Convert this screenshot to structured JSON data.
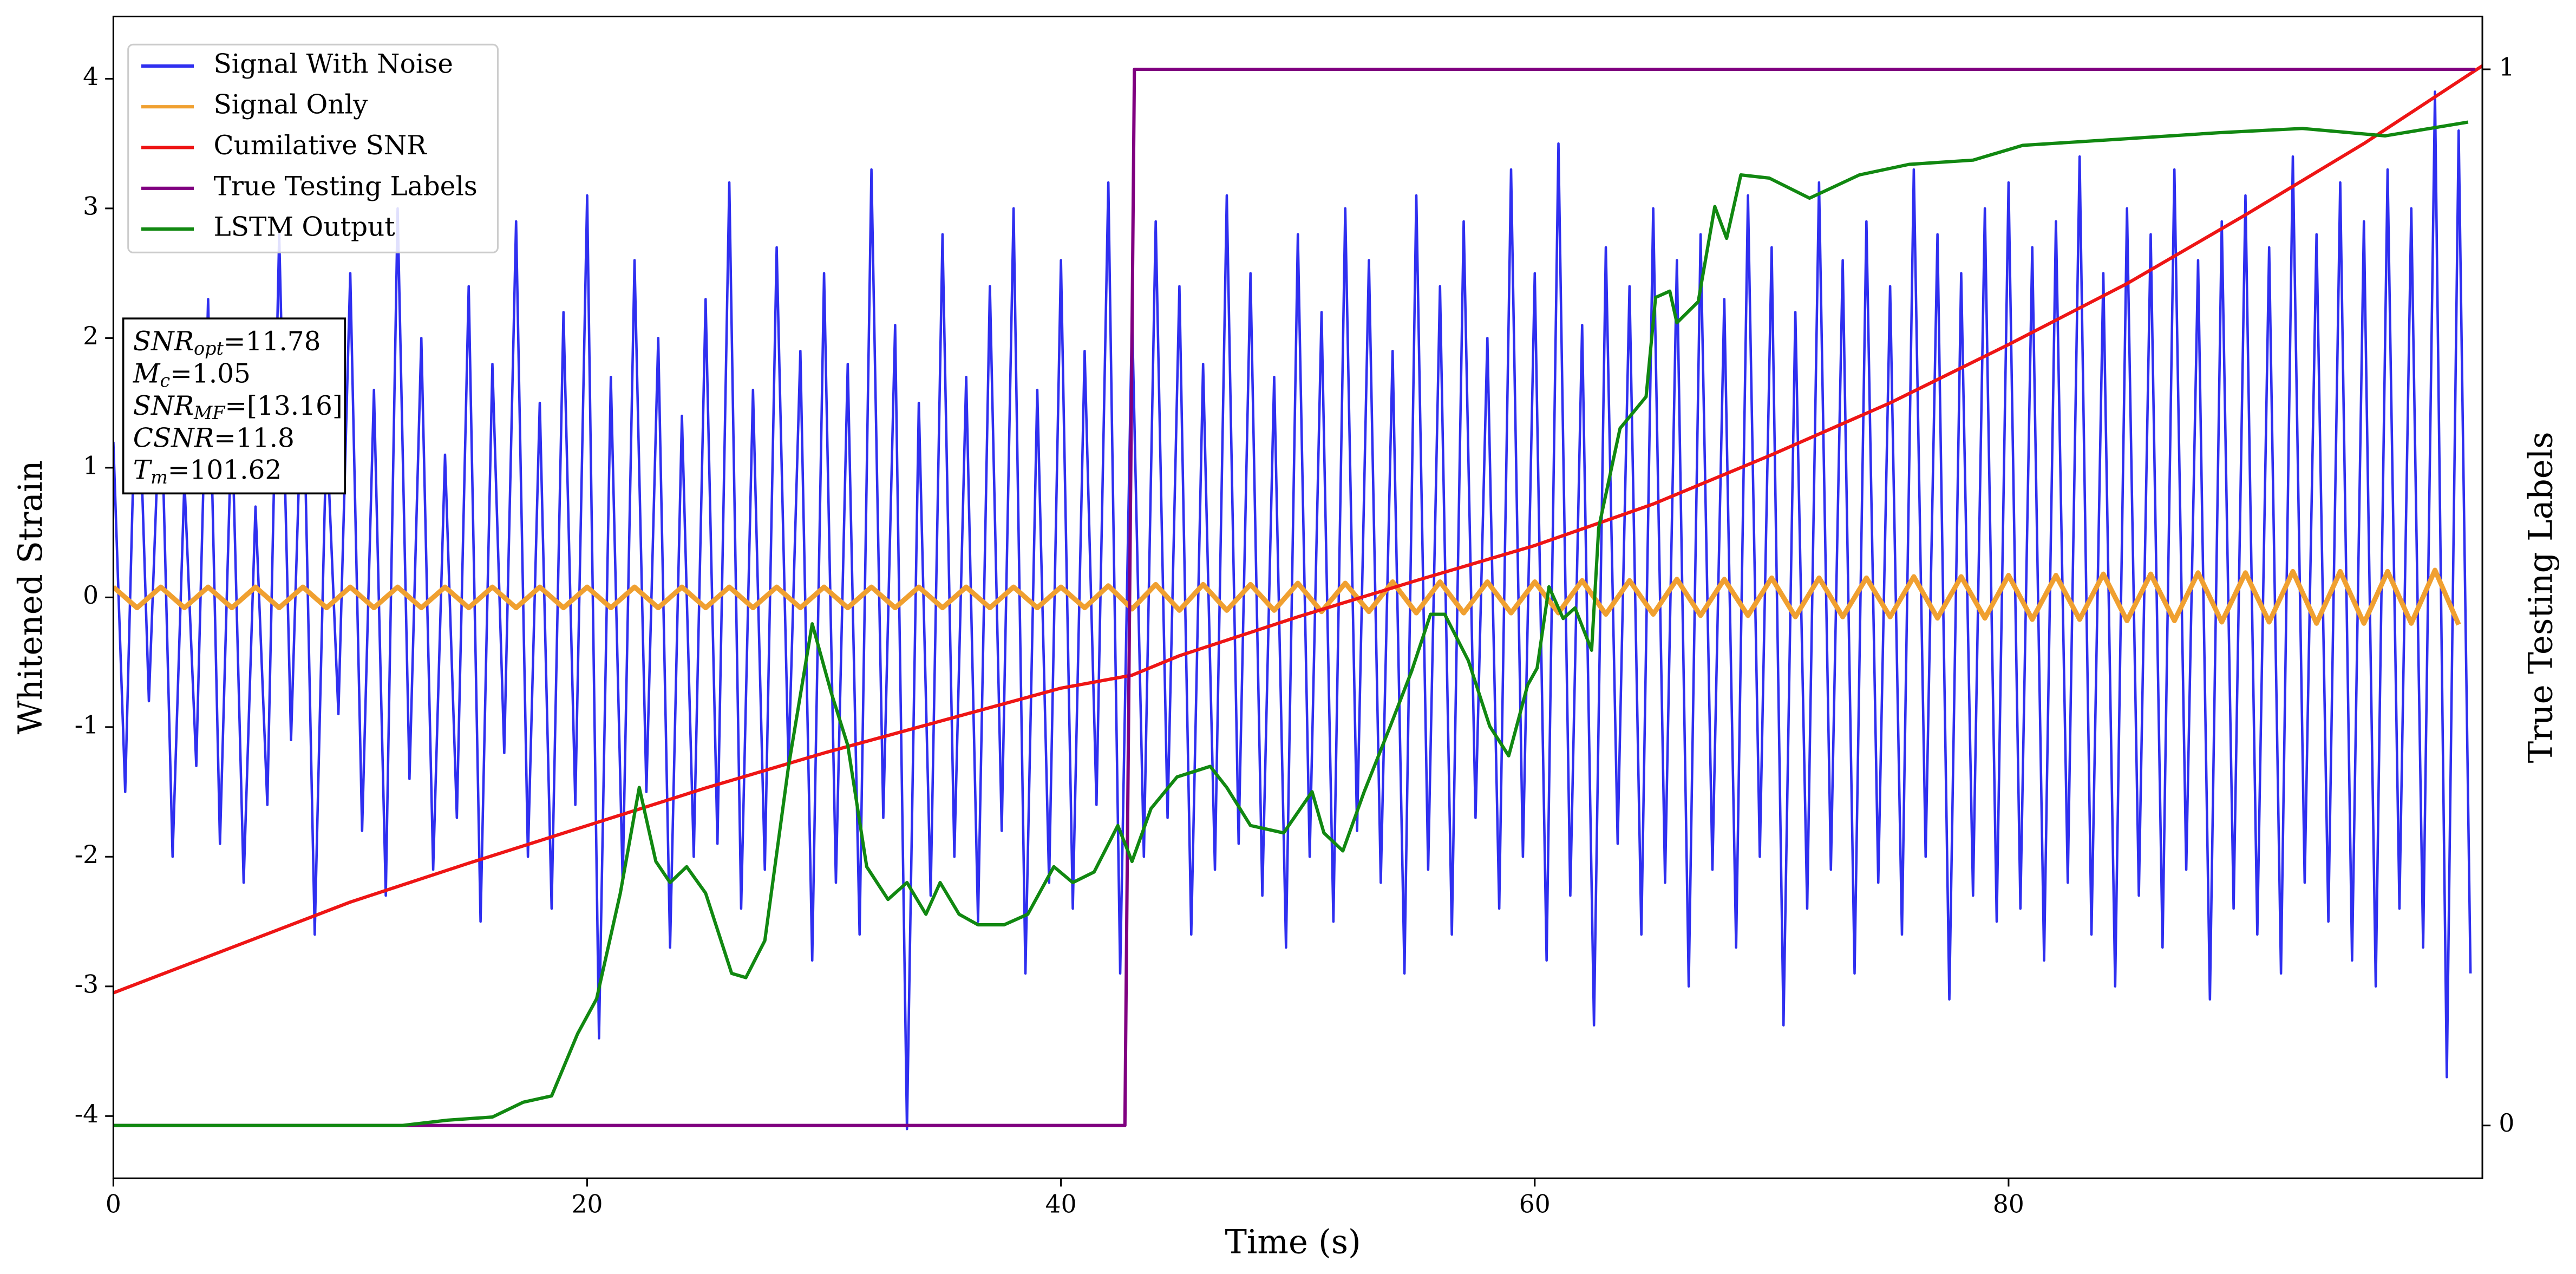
{
  "chart_data": {
    "type": "line",
    "xlabel": "Time (s)",
    "ylabel": "Whitened Strain",
    "y2label": "True Testing Labels",
    "xlim": [
      0,
      100
    ],
    "xticks": [
      0,
      20,
      40,
      60,
      80
    ],
    "ylim": [
      -4.48,
      4.48
    ],
    "yticks": [
      -4,
      -3,
      -2,
      -1,
      0,
      1,
      2,
      3,
      4
    ],
    "y2lim": [
      -0.05,
      1.05
    ],
    "y2ticks": [
      0,
      1
    ],
    "legend": "upper left",
    "annotation": [
      {
        "main": "SNR",
        "sub": "opt",
        "rest": "=11.78"
      },
      {
        "main": "M",
        "sub": "c",
        "rest": "=1.05"
      },
      {
        "main": "SNR",
        "sub": "MF",
        "rest": "=[13.16]"
      },
      {
        "main": "CSNR",
        "sub": "",
        "rest": "=11.8"
      },
      {
        "main": "T",
        "sub": "m",
        "rest": "=101.62"
      }
    ],
    "series": [
      {
        "name": "Signal With Noise",
        "color": "#2f2ff0",
        "axis": "y",
        "x": [
          0,
          0.5,
          1,
          1.5,
          2,
          2.5,
          3,
          3.5,
          4,
          4.5,
          5,
          5.5,
          6,
          6.5,
          7,
          7.5,
          8,
          8.5,
          9,
          9.5,
          10,
          10.5,
          11,
          11.5,
          12,
          12.5,
          13,
          13.5,
          14,
          14.5,
          15,
          15.5,
          16,
          16.5,
          17,
          17.5,
          18,
          18.5,
          19,
          19.5,
          20,
          20.5,
          21,
          21.5,
          22,
          22.5,
          23,
          23.5,
          24,
          24.5,
          25,
          25.5,
          26,
          26.5,
          27,
          27.5,
          28,
          28.5,
          29,
          29.5,
          30,
          30.5,
          31,
          31.5,
          32,
          32.5,
          33,
          33.5,
          34,
          34.5,
          35,
          35.5,
          36,
          36.5,
          37,
          37.5,
          38,
          38.5,
          39,
          39.5,
          40,
          40.5,
          41,
          41.5,
          42,
          42.5,
          43,
          43.5,
          44,
          44.5,
          45,
          45.5,
          46,
          46.5,
          47,
          47.5,
          48,
          48.5,
          49,
          49.5,
          50,
          50.5,
          51,
          51.5,
          52,
          52.5,
          53,
          53.5,
          54,
          54.5,
          55,
          55.5,
          56,
          56.5,
          57,
          57.5,
          58,
          58.5,
          59,
          59.5,
          60,
          60.5,
          61,
          61.5,
          62,
          62.5,
          63,
          63.5,
          64,
          64.5,
          65,
          65.5,
          66,
          66.5,
          67,
          67.5,
          68,
          68.5,
          69,
          69.5,
          70,
          70.5,
          71,
          71.5,
          72,
          72.5,
          73,
          73.5,
          74,
          74.5,
          75,
          75.5,
          76,
          76.5,
          77,
          77.5,
          78,
          78.5,
          79,
          79.5,
          80,
          80.5,
          81,
          81.5,
          82,
          82.5,
          83,
          83.5,
          84,
          84.5,
          85,
          85.5,
          86,
          86.5,
          87,
          87.5,
          88,
          88.5,
          89,
          89.5,
          90,
          90.5,
          91,
          91.5,
          92,
          92.5,
          93,
          93.5,
          94,
          94.5,
          95,
          95.5,
          96,
          96.5,
          97,
          97.5,
          98,
          98.5,
          99,
          99.5
        ],
        "values": [
          1.2,
          -1.5,
          2.1,
          -0.8,
          1.7,
          -2.0,
          0.9,
          -1.3,
          2.3,
          -1.9,
          1.4,
          -2.2,
          0.7,
          -1.6,
          2.8,
          -1.1,
          1.9,
          -2.6,
          1.3,
          -0.9,
          2.5,
          -1.8,
          1.6,
          -2.3,
          3.0,
          -1.4,
          2.0,
          -2.1,
          1.1,
          -1.7,
          2.4,
          -2.5,
          1.8,
          -1.2,
          2.9,
          -2.0,
          1.5,
          -2.4,
          2.2,
          -1.6,
          3.1,
          -3.4,
          1.7,
          -2.2,
          2.6,
          -1.5,
          2.0,
          -2.7,
          1.4,
          -2.0,
          2.3,
          -1.9,
          3.2,
          -2.4,
          1.6,
          -2.1,
          2.7,
          -1.3,
          1.9,
          -2.8,
          2.5,
          -2.2,
          1.8,
          -2.6,
          3.3,
          -1.7,
          2.1,
          -4.1,
          1.5,
          -2.3,
          2.8,
          -2.0,
          1.7,
          -2.5,
          2.4,
          -1.8,
          3.0,
          -2.9,
          1.6,
          -2.2,
          2.6,
          -2.4,
          1.9,
          -1.6,
          3.2,
          -2.9,
          2.2,
          -2.0,
          2.9,
          -1.7,
          2.4,
          -2.6,
          1.8,
          -2.1,
          3.1,
          -1.9,
          2.5,
          -2.3,
          1.7,
          -2.7,
          2.8,
          -2.0,
          2.2,
          -2.5,
          3.0,
          -1.8,
          2.6,
          -2.2,
          1.9,
          -2.9,
          3.1,
          -2.1,
          2.4,
          -2.6,
          2.9,
          -1.7,
          2.0,
          -2.4,
          3.3,
          -2.0,
          2.5,
          -2.8,
          3.5,
          -2.3,
          2.1,
          -3.3,
          2.7,
          -1.9,
          2.4,
          -2.6,
          3.0,
          -2.2,
          2.6,
          -3.0,
          2.8,
          -2.1,
          2.3,
          -2.7,
          3.1,
          -2.0,
          2.7,
          -3.3,
          2.2,
          -2.4,
          3.2,
          -2.1,
          2.6,
          -2.9,
          2.9,
          -2.2,
          2.4,
          -2.6,
          3.3,
          -2.0,
          2.8,
          -3.1,
          2.5,
          -2.3,
          3.0,
          -2.5,
          3.2,
          -2.4,
          2.7,
          -2.8,
          2.9,
          -2.2,
          3.4,
          -2.6,
          2.5,
          -3.0,
          3.0,
          -2.3,
          2.8,
          -2.7,
          3.3,
          -2.1,
          2.6,
          -3.1,
          2.9,
          -2.4,
          3.1,
          -2.6,
          2.7,
          -2.9,
          3.4,
          -2.2,
          2.8,
          -2.5,
          3.2,
          -2.8,
          2.9,
          -3.0,
          3.3,
          -2.4,
          3.0,
          -2.7,
          3.9,
          -3.7,
          3.6,
          -2.9
        ]
      },
      {
        "name": "Signal Only",
        "color": "#f0a030",
        "axis": "y",
        "x": [
          0,
          1,
          2,
          3,
          4,
          5,
          6,
          7,
          8,
          9,
          10,
          11,
          12,
          13,
          14,
          15,
          16,
          17,
          18,
          19,
          20,
          21,
          22,
          23,
          24,
          25,
          26,
          27,
          28,
          29,
          30,
          31,
          32,
          33,
          34,
          35,
          36,
          37,
          38,
          39,
          40,
          41,
          42,
          43,
          44,
          45,
          46,
          47,
          48,
          49,
          50,
          51,
          52,
          53,
          54,
          55,
          56,
          57,
          58,
          59,
          60,
          61,
          62,
          63,
          64,
          65,
          66,
          67,
          68,
          69,
          70,
          71,
          72,
          73,
          74,
          75,
          76,
          77,
          78,
          79,
          80,
          81,
          82,
          83,
          84,
          85,
          86,
          87,
          88,
          89,
          90,
          91,
          92,
          93,
          94,
          95,
          96,
          97,
          98,
          99
        ],
        "values": [
          0.08,
          -0.08,
          0.08,
          -0.08,
          0.08,
          -0.08,
          0.08,
          -0.08,
          0.08,
          -0.08,
          0.08,
          -0.08,
          0.08,
          -0.08,
          0.08,
          -0.08,
          0.08,
          -0.08,
          0.08,
          -0.08,
          0.08,
          -0.08,
          0.08,
          -0.08,
          0.08,
          -0.08,
          0.08,
          -0.08,
          0.08,
          -0.08,
          0.08,
          -0.08,
          0.08,
          -0.08,
          0.08,
          -0.08,
          0.08,
          -0.08,
          0.08,
          -0.08,
          0.08,
          -0.08,
          0.09,
          -0.09,
          0.1,
          -0.1,
          0.1,
          -0.1,
          0.1,
          -0.1,
          0.11,
          -0.11,
          0.11,
          -0.11,
          0.12,
          -0.12,
          0.12,
          -0.12,
          0.12,
          -0.12,
          0.12,
          -0.12,
          0.13,
          -0.13,
          0.13,
          -0.13,
          0.14,
          -0.14,
          0.14,
          -0.14,
          0.15,
          -0.15,
          0.15,
          -0.15,
          0.15,
          -0.15,
          0.16,
          -0.16,
          0.16,
          -0.16,
          0.17,
          -0.17,
          0.17,
          -0.17,
          0.18,
          -0.18,
          0.18,
          -0.18,
          0.19,
          -0.19,
          0.19,
          -0.19,
          0.2,
          -0.2,
          0.2,
          -0.2,
          0.2,
          -0.2,
          0.21,
          -0.21
        ]
      },
      {
        "name": "Cumilative SNR",
        "color": "#ee1515",
        "axis": "y",
        "x": [
          0,
          5,
          10,
          15,
          20,
          25,
          30,
          35,
          40,
          43,
          45,
          50,
          55,
          60,
          65,
          70,
          75,
          80,
          85,
          90,
          95,
          100
        ],
        "values": [
          -3.05,
          -2.7,
          -2.35,
          -2.05,
          -1.76,
          -1.47,
          -1.2,
          -0.95,
          -0.7,
          -0.6,
          -0.45,
          -0.15,
          0.13,
          0.4,
          0.72,
          1.1,
          1.5,
          1.95,
          2.42,
          2.95,
          3.5,
          4.1
        ]
      },
      {
        "name": "True Testing Labels",
        "color": "#800080",
        "axis": "y2",
        "x": [
          0,
          42.7,
          43.1,
          99.7
        ],
        "values": [
          0,
          0,
          1,
          1
        ]
      },
      {
        "name": "LSTM Output",
        "color": "#118811",
        "axis": "y2",
        "x": [
          0,
          12.2,
          14.1,
          16,
          17.3,
          18.5,
          19.6,
          20.4,
          21.4,
          22.2,
          22.9,
          23.5,
          24.2,
          25,
          26.1,
          26.7,
          27.5,
          28.5,
          29.5,
          30.3,
          31,
          31.8,
          32.7,
          33.5,
          34.3,
          34.9,
          35.7,
          36.5,
          37.6,
          38.6,
          39.7,
          40.5,
          41.4,
          42.4,
          43,
          43.8,
          44.9,
          46.3,
          47,
          48,
          49.4,
          50.6,
          51.1,
          51.9,
          52.8,
          53.9,
          54.8,
          55.6,
          56.2,
          57.2,
          58.1,
          58.9,
          59.7,
          60.1,
          60.6,
          61.2,
          61.7,
          62.4,
          62.7,
          63.6,
          64.7,
          65.1,
          65.7,
          66,
          66.9,
          67.6,
          68.1,
          68.7,
          69.9,
          71.6,
          73.7,
          75.8,
          78.5,
          80.6,
          84.1,
          88.9,
          92.4,
          95.9,
          99.4
        ],
        "values": [
          0,
          0,
          0.005,
          0.008,
          0.022,
          0.028,
          0.087,
          0.12,
          0.22,
          0.32,
          0.25,
          0.23,
          0.245,
          0.22,
          0.144,
          0.14,
          0.175,
          0.34,
          0.475,
          0.41,
          0.36,
          0.245,
          0.214,
          0.23,
          0.2,
          0.23,
          0.2,
          0.19,
          0.19,
          0.2,
          0.245,
          0.23,
          0.24,
          0.284,
          0.25,
          0.3,
          0.33,
          0.34,
          0.32,
          0.284,
          0.277,
          0.316,
          0.277,
          0.26,
          0.316,
          0.378,
          0.43,
          0.484,
          0.484,
          0.44,
          0.378,
          0.35,
          0.417,
          0.433,
          0.51,
          0.48,
          0.49,
          0.45,
          0.566,
          0.66,
          0.69,
          0.784,
          0.79,
          0.76,
          0.78,
          0.87,
          0.84,
          0.9,
          0.897,
          0.878,
          0.9,
          0.91,
          0.914,
          0.928,
          0.933,
          0.94,
          0.944,
          0.937,
          0.95
        ]
      }
    ]
  }
}
